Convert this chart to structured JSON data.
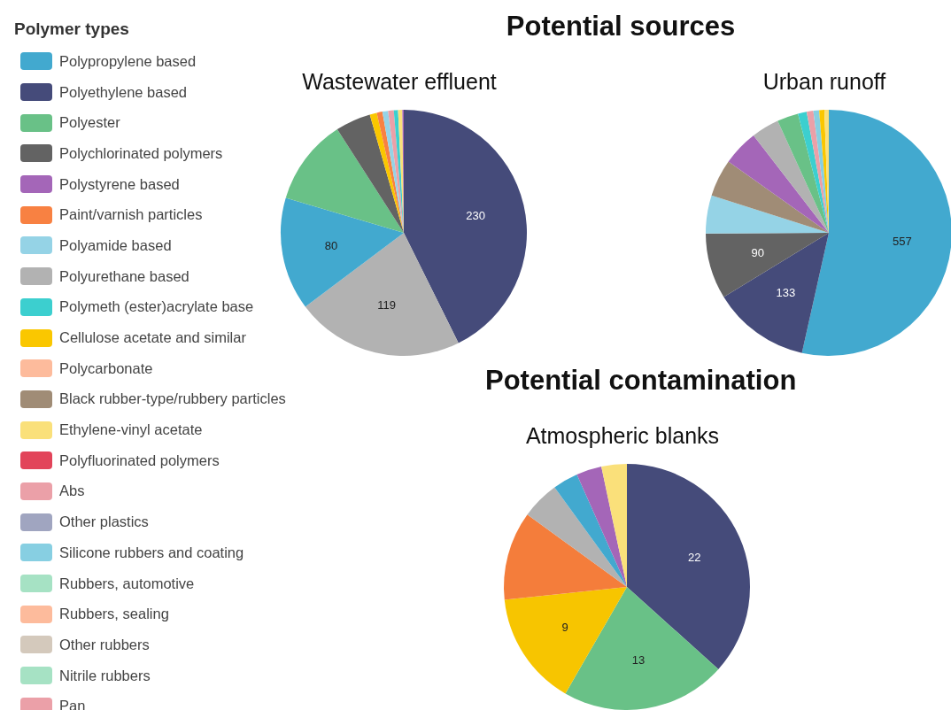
{
  "chart_data": [
    {
      "type": "pie",
      "title": "Wastewater effluent",
      "annotations": [
        "Potential sources"
      ],
      "legend": "left",
      "legend_title": "Polymer types",
      "categories": [
        "Polypropylene based",
        "Polyethylene based",
        "Polyester",
        "Polychlorinated polymers",
        "Polystyrene based",
        "Paint/varnish particles",
        "Polyamide based",
        "Polyurethane based",
        "Polymeth (ester)acrylate base",
        "Cellulose acetate and similar",
        "Polycarbonate",
        "Black rubber-type/rubbery particles",
        "Ethylene-vinyl acetate",
        "Polyfluorinated polymers",
        "Abs",
        "Other plastics",
        "Silicone rubbers and coating",
        "Rubbers, automotive",
        "Rubbers, sealing",
        "Other rubbers",
        "Nitrile rubbers",
        "Pan"
      ],
      "values": [
        80,
        230,
        61,
        25,
        1,
        4,
        4,
        119,
        3,
        5,
        null,
        null,
        3,
        null,
        4,
        null,
        null,
        null,
        null,
        null,
        null,
        null
      ],
      "value_labels": [
        "80",
        "230",
        null,
        null,
        null,
        null,
        null,
        "119",
        null,
        null,
        null,
        null,
        null,
        null,
        null,
        null,
        null,
        null,
        null,
        null,
        null,
        null
      ],
      "colors": [
        "#42a9cf",
        "#454b7a",
        "#69c187",
        "#636363",
        "#a466b8",
        "#f88142",
        "#95d3e6",
        "#b2b2b2",
        "#3ccfcf",
        "#fac700",
        "#fdbb9c",
        "#a08c76",
        "#fae07a",
        "#e2445a",
        "#eba0a8",
        "#a0a5c0",
        "#87cfe2",
        "#a6e2c4",
        "#fdbb9c",
        "#d4c9bc",
        "#a6e2c4",
        "#eba0a8"
      ]
    },
    {
      "type": "pie",
      "title": "Urban runoff",
      "categories": [
        null,
        null,
        null,
        null,
        null,
        null,
        null,
        null,
        null,
        null,
        null,
        null,
        null
      ],
      "values": [
        557,
        133,
        29,
        90,
        49,
        52,
        38,
        12,
        7,
        51,
        6,
        9,
        8
      ],
      "value_labels": [
        "557",
        "133",
        null,
        "90",
        null,
        null,
        null,
        null,
        null,
        null,
        null,
        null,
        null
      ],
      "colors": [
        "#42a9cf",
        "#454b7a",
        "#69c187",
        "#636363",
        "#a466b8",
        "#95d3e6",
        "#b2b2b2",
        "#3ccfcf",
        "#fac700",
        "#a08c76",
        "#fae07a",
        "#eba0a8",
        "#87cfe2"
      ]
    },
    {
      "type": "pie",
      "title": "Atmospheric blanks",
      "annotations": [
        "Potential contamination"
      ],
      "categories": [
        null,
        null,
        null,
        null,
        null,
        null,
        null,
        null
      ],
      "values": [
        2,
        22,
        13,
        2,
        7,
        3,
        9,
        2
      ],
      "value_labels": [
        null,
        "22",
        "13",
        null,
        null,
        null,
        "9",
        null
      ],
      "colors": [
        "#42a9cf",
        "#454b7a",
        "#69c187",
        "#a466b8",
        "#f47d3b",
        "#b2b2b2",
        "#f7c500",
        "#fae07a"
      ]
    }
  ]
}
